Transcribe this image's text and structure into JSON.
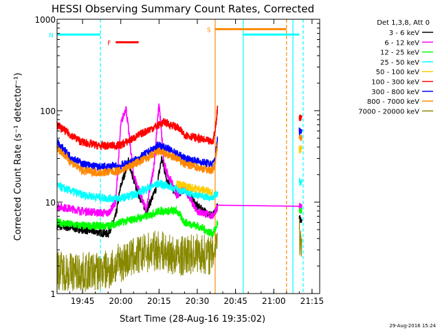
{
  "chart_data": {
    "type": "line",
    "title": "HESSI Observing Summary Count Rates, Corrected",
    "xlabel": "Start Time (28-Aug-16 19:35:02)",
    "ylabel": "Corrected Count Rate (s⁻¹ detector⁻¹)",
    "xlim": [
      "19:35",
      "21:18"
    ],
    "ylim": [
      1,
      1000
    ],
    "yscale": "log",
    "x_ticks": [
      "19:45",
      "20:00",
      "20:15",
      "20:30",
      "20:45",
      "21:00",
      "21:15"
    ],
    "y_ticks": [
      "1",
      "10",
      "100",
      "1000"
    ],
    "legend_header": "Det 1,3,8, Att 0",
    "legend_position": "right",
    "footer": "29-Aug-2016 15:24",
    "series": [
      {
        "name": "3 - 6 keV",
        "color": "#000000",
        "x": [
          "19:35",
          "19:45",
          "19:55",
          "19:58",
          "20:00",
          "20:03",
          "20:06",
          "20:10",
          "20:14",
          "20:16",
          "20:18",
          "20:22",
          "20:25",
          "20:30",
          "20:36",
          "20:37",
          "20:38",
          "21:09",
          "21:10",
          "21:11"
        ],
        "y": [
          5.5,
          5,
          4.5,
          7,
          15,
          28,
          14,
          8,
          14,
          30,
          18,
          12,
          14,
          9,
          7,
          8,
          9,
          null,
          6.5,
          6.5
        ]
      },
      {
        "name": "6 - 12 keV",
        "color": "#ff00ff",
        "x": [
          "19:35",
          "19:45",
          "19:55",
          "19:58",
          "20:00",
          "20:02",
          "20:05",
          "20:10",
          "20:13",
          "20:15",
          "20:17",
          "20:22",
          "20:25",
          "20:30",
          "20:36",
          "20:37",
          "20:38",
          "21:09",
          "21:10",
          "21:11"
        ],
        "y": [
          9,
          8,
          7.5,
          10,
          70,
          110,
          20,
          8,
          25,
          120,
          25,
          12,
          14,
          8,
          7,
          8,
          9,
          null,
          9,
          9
        ]
      },
      {
        "name": "12 - 25 keV",
        "color": "#00ff00",
        "x": [
          "19:35",
          "19:45",
          "19:55",
          "20:00",
          "20:05",
          "20:10",
          "20:15",
          "20:22",
          "20:25",
          "20:30",
          "20:36",
          "20:37",
          "20:38",
          "21:09",
          "21:10",
          "21:11"
        ],
        "y": [
          6,
          5.5,
          5.5,
          6,
          6.5,
          7,
          8,
          8,
          6,
          5.5,
          4.5,
          5,
          6,
          null,
          8,
          8
        ]
      },
      {
        "name": "25 - 50 keV",
        "color": "#00ffff",
        "x": [
          "19:35",
          "19:45",
          "19:55",
          "20:00",
          "20:05",
          "20:10",
          "20:15",
          "20:22",
          "20:25",
          "20:30",
          "20:36",
          "20:37",
          "20:38",
          "21:09",
          "21:10",
          "21:11"
        ],
        "y": [
          15,
          12,
          11,
          11,
          12,
          14,
          16,
          14,
          13,
          12,
          11,
          12,
          13,
          null,
          17,
          17
        ]
      },
      {
        "name": "50 - 100 keV",
        "color": "#ffcc00",
        "x": [
          "20:22",
          "20:25",
          "20:30",
          "20:36",
          "21:09",
          "21:10",
          "21:11"
        ],
        "y": [
          16,
          15,
          14,
          13,
          null,
          38,
          38
        ]
      },
      {
        "name": "100 - 300 keV",
        "color": "#ff0000",
        "x": [
          "19:35",
          "19:40",
          "19:45",
          "19:52",
          "20:00",
          "20:05",
          "20:10",
          "20:15",
          "20:17",
          "20:22",
          "20:25",
          "20:30",
          "20:36",
          "20:37",
          "20:38",
          "21:09",
          "21:10",
          "21:11"
        ],
        "y": [
          70,
          55,
          45,
          41,
          42,
          50,
          60,
          70,
          75,
          66,
          55,
          50,
          45,
          60,
          110,
          null,
          85,
          85
        ]
      },
      {
        "name": "300 - 800 keV",
        "color": "#0000ff",
        "x": [
          "19:35",
          "19:40",
          "19:45",
          "19:52",
          "20:00",
          "20:05",
          "20:10",
          "20:15",
          "20:22",
          "20:25",
          "20:30",
          "20:36",
          "20:37",
          "20:38",
          "21:09",
          "21:10",
          "21:11"
        ],
        "y": [
          45,
          32,
          26,
          24,
          25,
          28,
          34,
          42,
          34,
          30,
          28,
          26,
          30,
          50,
          null,
          60,
          60
        ]
      },
      {
        "name": "800 - 7000 keV",
        "color": "#ff8800",
        "x": [
          "19:35",
          "19:40",
          "19:45",
          "19:52",
          "20:00",
          "20:05",
          "20:10",
          "20:15",
          "20:22",
          "20:25",
          "20:30",
          "20:36",
          "20:37",
          "20:38",
          "21:09",
          "21:10",
          "21:11"
        ],
        "y": [
          40,
          28,
          22,
          21,
          22,
          26,
          30,
          36,
          30,
          26,
          24,
          22,
          27,
          45,
          null,
          52,
          52
        ]
      },
      {
        "name": "7000 - 20000 keV",
        "color": "#888800",
        "x": [
          "19:35",
          "19:45",
          "19:55",
          "20:00",
          "20:05",
          "20:10",
          "20:15",
          "20:22",
          "20:30",
          "20:36",
          "20:37",
          "20:38",
          "21:09",
          "21:10",
          "21:11"
        ],
        "y": [
          1.8,
          1.7,
          1.8,
          2.2,
          2.5,
          2.8,
          3,
          2.5,
          2.8,
          2.6,
          3.5,
          4.5,
          null,
          4,
          4
        ]
      }
    ],
    "bars": [
      {
        "label": "N",
        "color": "#00ffff",
        "segments": [
          [
            "19:35",
            "19:52"
          ],
          [
            "20:48",
            "21:10"
          ]
        ],
        "level": 680
      },
      {
        "label": "F",
        "color": "#ff0000",
        "segments": [
          [
            "19:58",
            "20:07"
          ]
        ],
        "level": 560
      },
      {
        "label": "S",
        "color": "#ff8800",
        "segments": [
          [
            "20:37",
            "21:05"
          ]
        ],
        "level": 780
      }
    ],
    "vlines": [
      {
        "x": "19:52",
        "color": "#00ffff",
        "style": "dashed"
      },
      {
        "x": "20:37",
        "color": "#ff8800",
        "style": "solid"
      },
      {
        "x": "20:48",
        "color": "#00ffff",
        "style": "solid"
      },
      {
        "x": "21:05",
        "color": "#ff8800",
        "style": "dashed"
      },
      {
        "x": "21:07.5",
        "color": "#00ffff",
        "style": "solid"
      },
      {
        "x": "21:11.5",
        "color": "#00ffff",
        "style": "dashed"
      }
    ]
  }
}
